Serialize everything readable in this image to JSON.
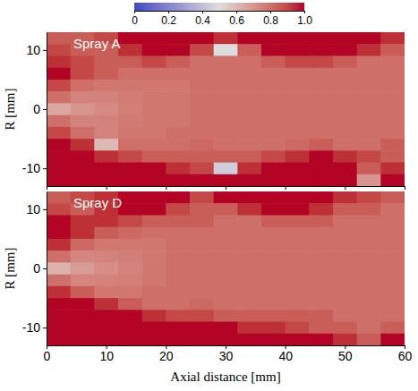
{
  "colorbar": {
    "range": [
      0,
      1
    ],
    "ticks": [
      0,
      0.2,
      0.4,
      0.6,
      0.8,
      {
        "value": 1,
        "label": "1.0"
      }
    ]
  },
  "chart_data": [
    {
      "type": "heatmap",
      "title": "Spray A",
      "y_label": "R [mm]",
      "tick_labels": "y",
      "xlim": [
        0,
        60
      ],
      "ylim": [
        -13,
        13
      ],
      "xticks": [
        0,
        10,
        20,
        30,
        40,
        50,
        60
      ],
      "yticks": [
        -10,
        0,
        10
      ],
      "x": [
        2,
        6,
        10,
        14,
        18,
        22,
        26,
        30,
        34,
        38,
        42,
        46,
        50,
        54,
        58
      ],
      "y": [
        12,
        10,
        8,
        6,
        4,
        2,
        0,
        -2,
        -4,
        -6,
        -8,
        -10,
        -12
      ],
      "cells": [
        [
          0.85,
          0.85,
          0.9,
          1,
          1,
          1,
          1,
          0.95,
          1,
          1,
          1,
          1,
          1,
          1,
          0.95
        ],
        [
          0.9,
          0.85,
          0.85,
          0.95,
          1,
          1,
          0.9,
          0.5,
          0.85,
          1,
          1,
          1,
          1,
          0.95,
          0.85
        ],
        [
          0.95,
          0.9,
          0.85,
          0.85,
          0.9,
          0.85,
          0.8,
          0.8,
          0.8,
          0.85,
          0.9,
          0.9,
          0.85,
          0.8,
          0.8
        ],
        [
          1,
          0.9,
          0.85,
          0.8,
          0.8,
          0.8,
          0.8,
          0.8,
          0.8,
          0.8,
          0.8,
          0.8,
          0.8,
          0.8,
          0.8
        ],
        [
          0.9,
          0.8,
          0.78,
          0.78,
          0.78,
          0.78,
          0.8,
          0.8,
          0.8,
          0.8,
          0.8,
          0.8,
          0.8,
          0.8,
          0.8
        ],
        [
          0.8,
          0.75,
          0.75,
          0.77,
          0.78,
          0.78,
          0.8,
          0.8,
          0.8,
          0.8,
          0.8,
          0.8,
          0.8,
          0.8,
          0.8
        ],
        [
          0.65,
          0.7,
          0.73,
          0.76,
          0.78,
          0.78,
          0.8,
          0.8,
          0.8,
          0.8,
          0.8,
          0.8,
          0.8,
          0.8,
          0.8
        ],
        [
          0.8,
          0.75,
          0.75,
          0.77,
          0.78,
          0.78,
          0.8,
          0.8,
          0.8,
          0.8,
          0.8,
          0.8,
          0.8,
          0.8,
          0.8
        ],
        [
          0.9,
          0.8,
          0.75,
          0.78,
          0.78,
          0.8,
          0.8,
          0.8,
          0.8,
          0.8,
          0.8,
          0.8,
          0.8,
          0.8,
          0.8
        ],
        [
          1,
          0.95,
          0.6,
          0.8,
          0.8,
          0.8,
          0.82,
          0.8,
          0.8,
          0.8,
          0.82,
          0.85,
          0.8,
          0.8,
          0.85
        ],
        [
          1,
          1,
          0.95,
          0.9,
          0.85,
          0.85,
          0.85,
          0.85,
          0.85,
          0.9,
          0.95,
          1,
          0.95,
          0.9,
          0.85
        ],
        [
          1,
          1,
          1,
          1,
          1,
          0.95,
          0.9,
          0.45,
          0.95,
          1,
          1,
          1,
          1,
          0.85,
          0.95
        ],
        [
          1,
          1,
          1,
          1,
          1,
          1,
          1,
          1,
          1,
          1,
          1,
          1,
          1,
          0.7,
          1
        ]
      ]
    },
    {
      "type": "heatmap",
      "title": "Spray D",
      "x_label": "Axial distance [mm]",
      "y_label": "R [mm]",
      "xlim": [
        0,
        60
      ],
      "ylim": [
        -13,
        13
      ],
      "xticks": [
        0,
        10,
        20,
        30,
        40,
        50,
        60
      ],
      "yticks": [
        -10,
        0,
        10
      ],
      "x": [
        2,
        6,
        10,
        14,
        18,
        22,
        26,
        30,
        34,
        38,
        42,
        46,
        50,
        54,
        58
      ],
      "y": [
        12,
        10,
        8,
        6,
        4,
        2,
        0,
        -2,
        -4,
        -6,
        -8,
        -10,
        -12
      ],
      "cells": [
        [
          0.85,
          0.9,
          0.95,
          1,
          1,
          1,
          0.9,
          1,
          1,
          1,
          1,
          1,
          0.95,
          0.9,
          0.85
        ],
        [
          0.9,
          0.85,
          0.95,
          1,
          1,
          0.9,
          0.85,
          0.85,
          0.95,
          1,
          1,
          0.95,
          0.85,
          0.85,
          0.8
        ],
        [
          1,
          0.95,
          0.95,
          0.9,
          0.85,
          0.85,
          0.85,
          0.8,
          0.8,
          0.85,
          0.85,
          0.85,
          0.8,
          0.8,
          0.8
        ],
        [
          1,
          0.95,
          0.85,
          0.82,
          0.8,
          0.8,
          0.8,
          0.8,
          0.8,
          0.8,
          0.8,
          0.8,
          0.8,
          0.8,
          0.8
        ],
        [
          0.95,
          0.82,
          0.78,
          0.78,
          0.78,
          0.8,
          0.8,
          0.8,
          0.8,
          0.8,
          0.8,
          0.8,
          0.8,
          0.8,
          0.8
        ],
        [
          0.8,
          0.74,
          0.75,
          0.76,
          0.78,
          0.8,
          0.8,
          0.8,
          0.8,
          0.8,
          0.8,
          0.8,
          0.8,
          0.8,
          0.8
        ],
        [
          0.62,
          0.68,
          0.72,
          0.75,
          0.78,
          0.8,
          0.8,
          0.8,
          0.8,
          0.8,
          0.8,
          0.8,
          0.8,
          0.8,
          0.8
        ],
        [
          0.8,
          0.74,
          0.75,
          0.76,
          0.78,
          0.8,
          0.8,
          0.8,
          0.8,
          0.8,
          0.8,
          0.8,
          0.8,
          0.8,
          0.8
        ],
        [
          0.95,
          0.85,
          0.78,
          0.78,
          0.8,
          0.8,
          0.8,
          0.8,
          0.8,
          0.8,
          0.8,
          0.8,
          0.8,
          0.8,
          0.8
        ],
        [
          1,
          1,
          0.95,
          0.85,
          0.8,
          0.8,
          0.82,
          0.8,
          0.8,
          0.8,
          0.8,
          0.8,
          0.8,
          0.8,
          0.8
        ],
        [
          1,
          1,
          1,
          1,
          0.95,
          0.9,
          0.9,
          0.85,
          0.85,
          0.85,
          0.85,
          0.85,
          0.8,
          0.8,
          0.8
        ],
        [
          1,
          1,
          1,
          1,
          1,
          1,
          1,
          1,
          0.95,
          0.95,
          0.9,
          0.85,
          0.85,
          0.8,
          0.85
        ],
        [
          1,
          1,
          1,
          1,
          1,
          1,
          1,
          1,
          1,
          1,
          1,
          1,
          0.95,
          0.85,
          1
        ]
      ]
    }
  ]
}
